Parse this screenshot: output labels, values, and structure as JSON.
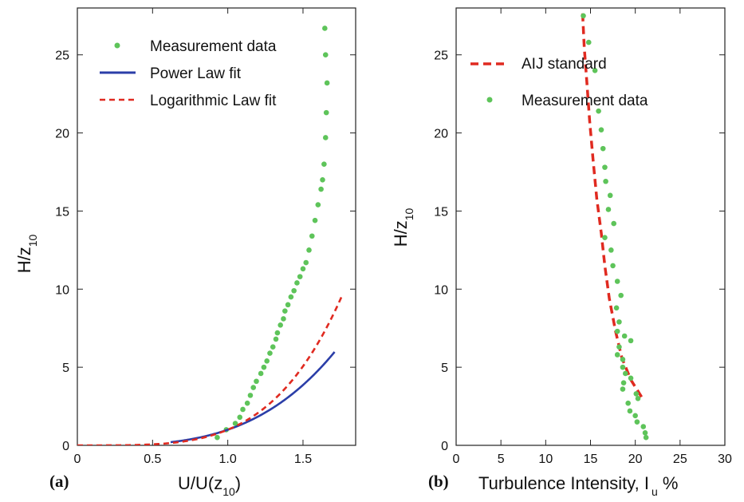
{
  "chart_data": [
    {
      "type": "scatter",
      "panel_label": "(a)",
      "xlabel": "U/U(z",
      "xlabel_sub": "10",
      "xlabel_suffix": ")",
      "ylabel": "H/z",
      "ylabel_sub": "10",
      "xlim": [
        0,
        1.85
      ],
      "ylim": [
        0,
        28
      ],
      "xticks": [
        0,
        0.5,
        1.0,
        1.5
      ],
      "xtick_labels": [
        "0",
        "0.5",
        "1.0",
        "1.5"
      ],
      "yticks": [
        0,
        5,
        10,
        15,
        20,
        25
      ],
      "ytick_labels": [
        "0",
        "5",
        "10",
        "15",
        "20",
        "25"
      ],
      "legend_position": "top-left",
      "series": [
        {
          "name": "Measurement data",
          "kind": "points",
          "color": "#5ec45a",
          "points": [
            [
              0.93,
              0.5
            ],
            [
              0.99,
              1.0
            ],
            [
              1.05,
              1.4
            ],
            [
              1.08,
              1.8
            ],
            [
              1.1,
              2.3
            ],
            [
              1.13,
              2.7
            ],
            [
              1.15,
              3.2
            ],
            [
              1.17,
              3.7
            ],
            [
              1.19,
              4.1
            ],
            [
              1.22,
              4.6
            ],
            [
              1.24,
              5.0
            ],
            [
              1.26,
              5.4
            ],
            [
              1.28,
              5.9
            ],
            [
              1.3,
              6.3
            ],
            [
              1.32,
              6.8
            ],
            [
              1.33,
              7.2
            ],
            [
              1.35,
              7.7
            ],
            [
              1.37,
              8.1
            ],
            [
              1.38,
              8.6
            ],
            [
              1.4,
              9.0
            ],
            [
              1.42,
              9.5
            ],
            [
              1.44,
              9.9
            ],
            [
              1.46,
              10.4
            ],
            [
              1.48,
              10.8
            ],
            [
              1.5,
              11.3
            ],
            [
              1.52,
              11.7
            ],
            [
              1.54,
              12.5
            ],
            [
              1.56,
              13.4
            ],
            [
              1.58,
              14.4
            ],
            [
              1.6,
              15.4
            ],
            [
              1.62,
              16.4
            ],
            [
              1.63,
              17.0
            ],
            [
              1.64,
              18.0
            ],
            [
              1.65,
              19.7
            ],
            [
              1.655,
              21.3
            ],
            [
              1.66,
              23.2
            ],
            [
              1.65,
              25.0
            ],
            [
              1.645,
              26.7
            ]
          ]
        },
        {
          "name": "Power Law fit",
          "kind": "line",
          "color": "#2b3ea8",
          "dash": "solid",
          "x_start": 0.62,
          "x_end": 1.71,
          "exponent": 0.3
        },
        {
          "name": "Logarithmic Law fit",
          "kind": "line",
          "color": "#e02a20",
          "dash": "dashed",
          "x_start": 0.0,
          "x_end": 1.76,
          "exponent": 0.25
        }
      ]
    },
    {
      "type": "scatter",
      "panel_label": "(b)",
      "xlabel": "Turbulence Intensity, I",
      "xlabel_sub": "u",
      "xlabel_suffix": " %",
      "ylabel": "H/z",
      "ylabel_sub": "10",
      "xlim": [
        0,
        30
      ],
      "ylim": [
        0,
        28
      ],
      "xticks": [
        0,
        5,
        10,
        15,
        20,
        25,
        30
      ],
      "xtick_labels": [
        "0",
        "5",
        "10",
        "15",
        "20",
        "25",
        "30"
      ],
      "yticks": [
        0,
        5,
        10,
        15,
        20,
        25
      ],
      "ytick_labels": [
        "0",
        "5",
        "10",
        "15",
        "20",
        "25"
      ],
      "legend_position": "top-left",
      "series": [
        {
          "name": "AIJ standard",
          "kind": "line",
          "color": "#e02a20",
          "dash": "dashed",
          "points": [
            [
              20.7,
              3.1
            ],
            [
              19.5,
              4.2
            ],
            [
              18.5,
              5.6
            ],
            [
              17.8,
              7.3
            ],
            [
              17.1,
              9.4
            ],
            [
              16.6,
              11.5
            ],
            [
              16.2,
              13.6
            ],
            [
              15.7,
              15.8
            ],
            [
              15.3,
              18.2
            ],
            [
              14.9,
              20.8
            ],
            [
              14.6,
              23.2
            ],
            [
              14.3,
              25.5
            ],
            [
              14.1,
              27.9
            ]
          ]
        },
        {
          "name": "Measurement data",
          "kind": "points",
          "color": "#5ec45a",
          "points": [
            [
              14.2,
              27.5
            ],
            [
              14.8,
              25.8
            ],
            [
              15.5,
              24.0
            ],
            [
              15.9,
              21.4
            ],
            [
              16.2,
              20.2
            ],
            [
              16.4,
              19.0
            ],
            [
              16.6,
              17.8
            ],
            [
              16.7,
              16.9
            ],
            [
              17.2,
              16.0
            ],
            [
              17.0,
              15.1
            ],
            [
              17.6,
              14.2
            ],
            [
              16.6,
              13.3
            ],
            [
              17.3,
              12.5
            ],
            [
              17.5,
              11.5
            ],
            [
              18.0,
              10.5
            ],
            [
              18.4,
              9.6
            ],
            [
              17.9,
              8.8
            ],
            [
              18.2,
              7.9
            ],
            [
              18.0,
              7.3
            ],
            [
              18.8,
              7.0
            ],
            [
              19.5,
              6.7
            ],
            [
              18.2,
              6.3
            ],
            [
              18.0,
              5.8
            ],
            [
              18.6,
              5.5
            ],
            [
              18.6,
              5.0
            ],
            [
              18.9,
              4.6
            ],
            [
              19.5,
              4.3
            ],
            [
              18.7,
              4.0
            ],
            [
              18.6,
              3.6
            ],
            [
              20.1,
              3.3
            ],
            [
              20.3,
              3.0
            ],
            [
              19.2,
              2.7
            ],
            [
              19.4,
              2.2
            ],
            [
              20.0,
              1.9
            ],
            [
              20.2,
              1.5
            ],
            [
              20.9,
              1.2
            ],
            [
              21.1,
              0.8
            ],
            [
              21.2,
              0.5
            ]
          ]
        }
      ]
    }
  ]
}
